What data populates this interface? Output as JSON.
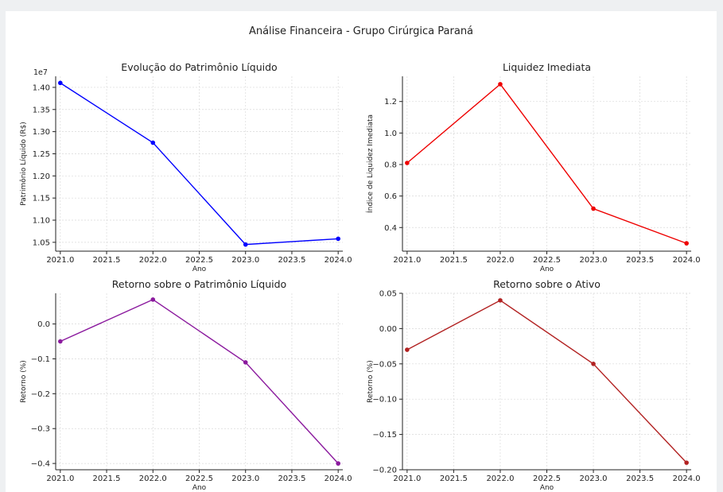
{
  "figure": {
    "title": "Análise Financeira - Grupo Cirúrgica Paraná"
  },
  "chart_data": [
    {
      "type": "line",
      "title": "Evolução do Patrimônio Líquido",
      "xlabel": "Ano",
      "ylabel": "Patrimônio Líquido (R$)",
      "scale_label": "1e7",
      "x": [
        2021,
        2022,
        2023,
        2024
      ],
      "series": [
        {
          "values": [
            1.41,
            1.275,
            1.045,
            1.058
          ]
        }
      ],
      "color": "#0000ff",
      "xlim": [
        2020.95,
        2024.05
      ],
      "ylim": [
        1.03,
        1.425
      ],
      "xticks": [
        2021.0,
        2021.5,
        2022.0,
        2022.5,
        2023.0,
        2023.5,
        2024.0
      ],
      "xtick_labels": [
        "2021.0",
        "2021.5",
        "2022.0",
        "2022.5",
        "2023.0",
        "2023.5",
        "2024.0"
      ],
      "yticks": [
        1.05,
        1.1,
        1.15,
        1.2,
        1.25,
        1.3,
        1.35,
        1.4
      ],
      "ytick_labels": [
        "1.05",
        "1.10",
        "1.15",
        "1.20",
        "1.25",
        "1.30",
        "1.35",
        "1.40"
      ],
      "grid": true
    },
    {
      "type": "line",
      "title": "Liquidez Imediata",
      "xlabel": "Ano",
      "ylabel": "Índice de Liquidez Imediata",
      "x": [
        2021,
        2022,
        2023,
        2024
      ],
      "series": [
        {
          "values": [
            0.81,
            1.31,
            0.52,
            0.3
          ]
        }
      ],
      "color": "#ee0000",
      "xlim": [
        2020.95,
        2024.05
      ],
      "ylim": [
        0.25,
        1.36
      ],
      "xticks": [
        2021.0,
        2021.5,
        2022.0,
        2022.5,
        2023.0,
        2023.5,
        2024.0
      ],
      "xtick_labels": [
        "2021.0",
        "2021.5",
        "2022.0",
        "2022.5",
        "2023.0",
        "2023.5",
        "2024.0"
      ],
      "yticks": [
        0.4,
        0.6,
        0.8,
        1.0,
        1.2
      ],
      "ytick_labels": [
        "0.4",
        "0.6",
        "0.8",
        "1.0",
        "1.2"
      ],
      "grid": true
    },
    {
      "type": "line",
      "title": "Retorno sobre o Patrimônio Líquido",
      "xlabel": "Ano",
      "ylabel": "Retorno (%)",
      "x": [
        2021,
        2022,
        2023,
        2024
      ],
      "series": [
        {
          "values": [
            -0.05,
            0.07,
            -0.11,
            -0.4
          ]
        }
      ],
      "color": "#8b1a9e",
      "xlim": [
        2020.95,
        2024.05
      ],
      "ylim": [
        -0.418,
        0.088
      ],
      "xticks": [
        2021.0,
        2021.5,
        2022.0,
        2022.5,
        2023.0,
        2023.5,
        2024.0
      ],
      "xtick_labels": [
        "2021.0",
        "2021.5",
        "2022.0",
        "2022.5",
        "2023.0",
        "2023.5",
        "2024.0"
      ],
      "yticks": [
        -0.4,
        -0.3,
        -0.2,
        -0.1,
        0.0
      ],
      "ytick_labels": [
        "−0.4",
        "−0.3",
        "−0.2",
        "−0.1",
        "0.0"
      ],
      "grid": true
    },
    {
      "type": "line",
      "title": "Retorno sobre o Ativo",
      "xlabel": "Ano",
      "ylabel": "Retorno (%)",
      "x": [
        2021,
        2022,
        2023,
        2024
      ],
      "series": [
        {
          "values": [
            -0.03,
            0.04,
            -0.05,
            -0.19
          ]
        }
      ],
      "color": "#b22222",
      "xlim": [
        2020.95,
        2024.05
      ],
      "ylim": [
        -0.2,
        0.05
      ],
      "xticks": [
        2021.0,
        2021.5,
        2022.0,
        2022.5,
        2023.0,
        2023.5,
        2024.0
      ],
      "xtick_labels": [
        "2021.0",
        "2021.5",
        "2022.0",
        "2022.5",
        "2023.0",
        "2023.5",
        "2024.0"
      ],
      "yticks": [
        -0.2,
        -0.15,
        -0.1,
        -0.05,
        0.0,
        0.05
      ],
      "ytick_labels": [
        "−0.20",
        "−0.15",
        "−0.10",
        "−0.05",
        "0.00",
        "0.05"
      ],
      "grid": true
    }
  ]
}
